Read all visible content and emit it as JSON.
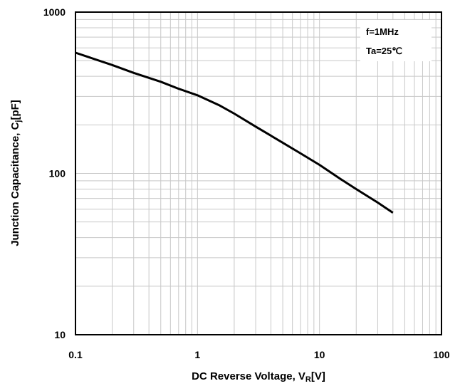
{
  "chart_data": {
    "type": "line",
    "xscale": "log",
    "yscale": "log",
    "xlim": [
      0.1,
      100
    ],
    "ylim": [
      10,
      1000
    ],
    "xticks": [
      "0.1",
      "1",
      "10",
      "100"
    ],
    "yticks": [
      "1000",
      "100",
      "10"
    ],
    "xlabel_main": "DC Reverse Voltage, V",
    "xlabel_sub": "R",
    "xlabel_unit": "[V]",
    "ylabel_main": "Junction Capacitance, C",
    "ylabel_sub": "j",
    "ylabel_unit": "[pF]",
    "annotations": [
      "f=1MHz",
      "Ta=25℃"
    ],
    "grid": true,
    "series": [
      {
        "x": [
          0.1,
          0.2,
          0.3,
          0.5,
          0.7,
          1,
          1.5,
          2,
          3,
          5,
          7,
          10,
          15,
          20,
          30,
          40
        ],
        "y": [
          560,
          470,
          420,
          370,
          335,
          305,
          265,
          235,
          195,
          155,
          133,
          113,
          92,
          80,
          66,
          57
        ]
      }
    ]
  }
}
